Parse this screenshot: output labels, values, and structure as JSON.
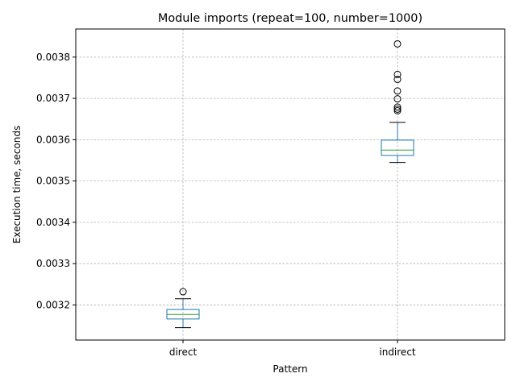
{
  "chart_data": {
    "type": "box",
    "title": "Module imports (repeat=100, number=1000)",
    "xlabel": "Pattern",
    "ylabel": "Execution time, seconds",
    "ylim": [
      0.003115,
      0.003868
    ],
    "yticks": [
      "0.0032",
      "0.0033",
      "0.0034",
      "0.0035",
      "0.0036",
      "0.0037",
      "0.0038"
    ],
    "grid": true,
    "categories": [
      "direct",
      "indirect"
    ],
    "boxes": [
      {
        "name": "direct",
        "whislo": 0.003145,
        "q1": 0.003166,
        "med": 0.003177,
        "q3": 0.003189,
        "whishi": 0.003215,
        "fliers": [
          0.003232
        ]
      },
      {
        "name": "indirect",
        "whislo": 0.003545,
        "q1": 0.003562,
        "med": 0.003575,
        "q3": 0.003599,
        "whishi": 0.003642,
        "fliers": [
          0.003832,
          0.003758,
          0.003746,
          0.003718,
          0.003699,
          0.003679,
          0.003674,
          0.00367
        ]
      }
    ],
    "colors": {
      "box": "#1f77b4",
      "median": "#2ca02c",
      "whisker": "#000000",
      "grid": "#b0b0b0"
    }
  }
}
